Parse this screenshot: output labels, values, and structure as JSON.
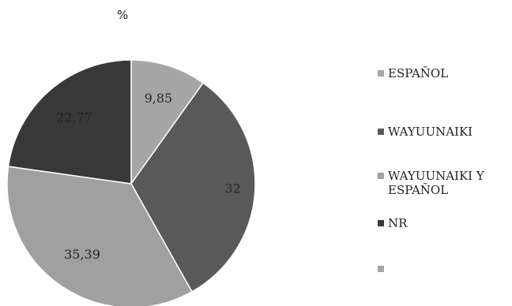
{
  "chart_data": {
    "type": "pie",
    "title": "%",
    "categories": [
      "ESPAÑOL",
      "WAYUUNAIKI",
      "WAYUUNAIKI Y ESPAÑOL",
      "NR",
      ""
    ],
    "values": [
      9.85,
      32,
      35.39,
      22.77,
      0
    ],
    "data_labels": [
      "9,85",
      "32",
      "35,39",
      "22,77",
      ""
    ],
    "colors": [
      "#a6a6a6",
      "#595959",
      "#a0a0a0",
      "#383838",
      "#a6a6a6"
    ],
    "legend_position": "right",
    "start_angle": "top",
    "direction": "clockwise"
  },
  "legend": {
    "items": [
      {
        "label_line1": "ESPAÑOL",
        "label_line2": ""
      },
      {
        "label_line1": "WAYUUNAIKI",
        "label_line2": ""
      },
      {
        "label_line1": "WAYUUNAIKI Y",
        "label_line2": "ESPAÑOL"
      },
      {
        "label_line1": "NR",
        "label_line2": ""
      },
      {
        "label_line1": "",
        "label_line2": ""
      }
    ]
  }
}
